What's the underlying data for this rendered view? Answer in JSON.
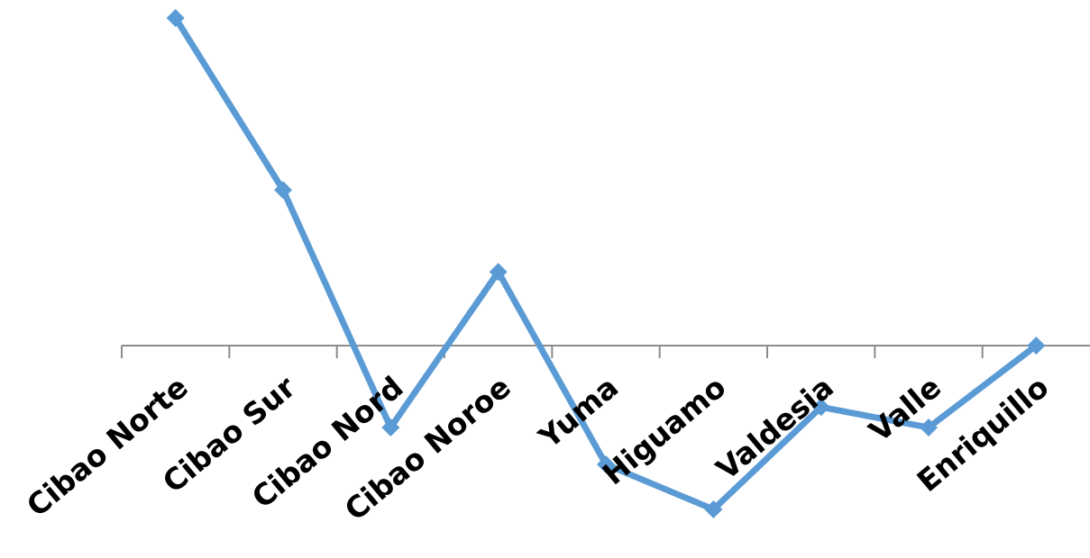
{
  "chart_data": {
    "type": "line",
    "title": "",
    "xlabel": "",
    "ylabel": "",
    "categories": [
      "Cibao Norte",
      "Cibao Sur",
      "Cibao Nord",
      "Cibao Noroe",
      "Yuma",
      "Higuamo",
      "Valdesia",
      "Valle",
      "Enriquillo"
    ],
    "series": [
      {
        "values": [
          4.0,
          1.9,
          -1.0,
          0.9,
          -1.45,
          -2.0,
          -0.75,
          -1.0,
          0.0
        ]
      }
    ],
    "ylim": [
      -2.1,
      4.2
    ],
    "grid": false,
    "legend": "none",
    "line_color": "#5b9bd5",
    "axis_color": "#8c8c8c"
  }
}
